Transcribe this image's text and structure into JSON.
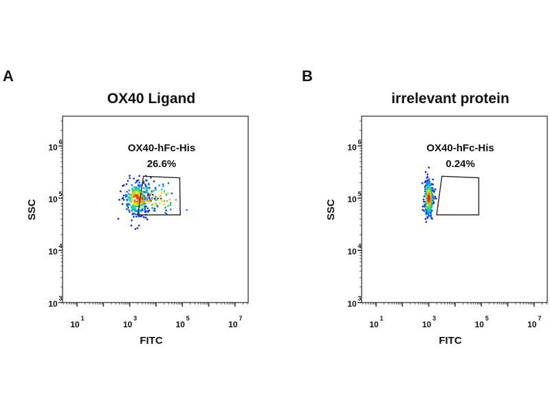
{
  "chart_data": [
    {
      "type": "scatter",
      "panel_label": "A",
      "title": "OX40 Ligand",
      "xlabel": "FITC",
      "ylabel": "SSC",
      "xscale": "log",
      "yscale": "log",
      "xlim_log10": [
        0.45,
        7.5
      ],
      "ylim_log10": [
        3,
        6.57
      ],
      "xticks": [
        {
          "exp": 1,
          "base": "10",
          "sup": "1"
        },
        {
          "exp": 3,
          "base": "10",
          "sup": "3"
        },
        {
          "exp": 5,
          "base": "10",
          "sup": "5"
        },
        {
          "exp": 7,
          "base": "10",
          "sup": "7"
        }
      ],
      "yticks": [
        {
          "exp": 3,
          "base": "10",
          "sup": "3"
        },
        {
          "exp": 4,
          "base": "10",
          "sup": "4"
        },
        {
          "exp": 5,
          "base": "10",
          "sup": "5"
        },
        {
          "exp": 6,
          "base": "10",
          "sup": "6"
        }
      ],
      "gate": {
        "name": "OX40-hFc-His",
        "percent": "26.6%",
        "vertices_log10": [
          [
            3.52,
            5.42
          ],
          [
            4.9,
            5.39
          ],
          [
            4.92,
            4.68
          ],
          [
            3.31,
            4.68
          ]
        ]
      },
      "population": {
        "center_log10": [
          3.25,
          5.0
        ],
        "spread_log10": [
          0.45,
          0.17
        ],
        "tail_x": 0.7,
        "count": 420
      }
    },
    {
      "type": "scatter",
      "panel_label": "B",
      "title": "irrelevant protein",
      "xlabel": "FITC",
      "ylabel": "SSC",
      "xscale": "log",
      "yscale": "log",
      "xlim_log10": [
        0.45,
        7.5
      ],
      "ylim_log10": [
        3,
        6.57
      ],
      "xticks": [
        {
          "exp": 1,
          "base": "10",
          "sup": "1"
        },
        {
          "exp": 3,
          "base": "10",
          "sup": "3"
        },
        {
          "exp": 5,
          "base": "10",
          "sup": "5"
        },
        {
          "exp": 7,
          "base": "10",
          "sup": "7"
        }
      ],
      "yticks": [
        {
          "exp": 3,
          "base": "10",
          "sup": "3"
        },
        {
          "exp": 4,
          "base": "10",
          "sup": "4"
        },
        {
          "exp": 5,
          "base": "10",
          "sup": "5"
        },
        {
          "exp": 6,
          "base": "10",
          "sup": "6"
        }
      ],
      "gate": {
        "name": "OX40-hFc-His",
        "percent": "0.24%",
        "vertices_log10": [
          [
            3.5,
            5.42
          ],
          [
            4.9,
            5.39
          ],
          [
            4.9,
            4.68
          ],
          [
            3.3,
            4.68
          ]
        ]
      },
      "population": {
        "center_log10": [
          3.0,
          5.0
        ],
        "spread_log10": [
          0.17,
          0.2
        ],
        "tail_x": 0.0,
        "count": 320
      }
    }
  ]
}
